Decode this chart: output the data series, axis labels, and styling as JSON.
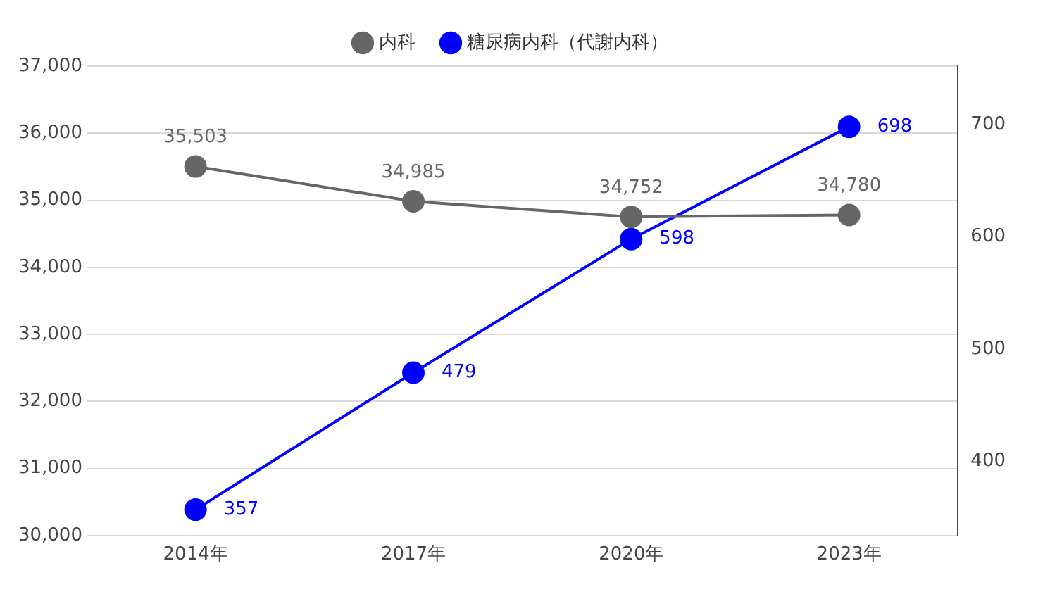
{
  "chart_data": {
    "type": "line",
    "categories": [
      "2014年",
      "2017年",
      "2020年",
      "2023年"
    ],
    "series": [
      {
        "name": "内科",
        "color": "#666666",
        "values": [
          35503,
          34985,
          34752,
          34780
        ],
        "value_labels": [
          "35,503",
          "34,985",
          "34,752",
          "34,780"
        ]
      },
      {
        "name": "糖尿病内科（代謝内科）",
        "color": "#0000ff",
        "values": [
          357,
          479,
          598,
          698
        ],
        "value_labels": [
          "357",
          "479",
          "598",
          "698"
        ],
        "axis": "y2"
      }
    ],
    "ylim": [
      30000,
      37000
    ],
    "yticks": [
      {
        "value": 30000,
        "label": "30,000"
      },
      {
        "value": 31000,
        "label": "31,000"
      },
      {
        "value": 32000,
        "label": "32,000"
      },
      {
        "value": 33000,
        "label": "33,000"
      },
      {
        "value": 34000,
        "label": "34,000"
      },
      {
        "value": 35000,
        "label": "35,000"
      },
      {
        "value": 36000,
        "label": "36,000"
      },
      {
        "value": 37000,
        "label": "37,000"
      }
    ],
    "y2lim": [
      334,
      752
    ],
    "y2ticks": [
      400,
      500,
      600,
      700
    ],
    "grid": "y",
    "legend": "top",
    "marker": "circle",
    "line_style": "solid"
  }
}
